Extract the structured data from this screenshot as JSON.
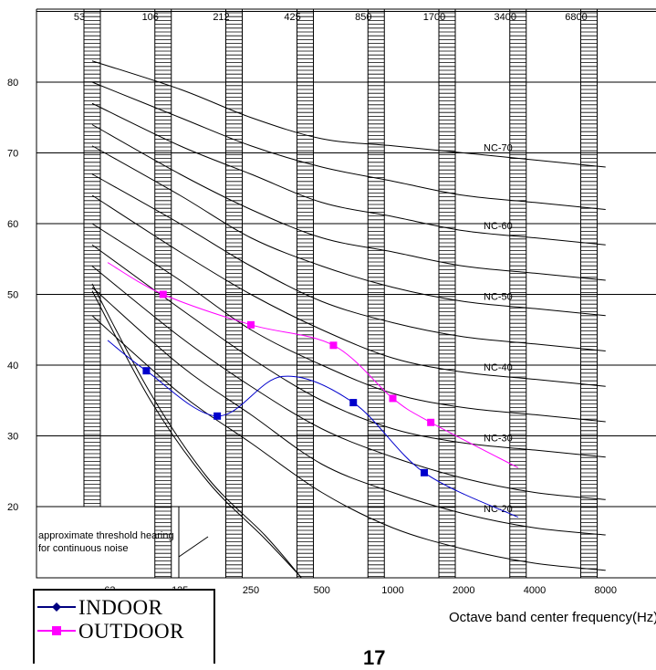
{
  "chart_data": {
    "type": "line",
    "title": "",
    "xlabel": "Octave band center frequency(Hz)",
    "ylabel": "",
    "ylim": [
      10,
      92
    ],
    "y_ticks": [
      20,
      30,
      40,
      50,
      60,
      70,
      80
    ],
    "x_center_labels": [
      "63",
      "125",
      "250",
      "500",
      "1000",
      "2000",
      "4000",
      "8000"
    ],
    "x_band_edge_labels": [
      "53",
      "106",
      "212",
      "425",
      "850",
      "1700",
      "3400",
      "6800"
    ],
    "grid": true,
    "legend_position": "bottom-left",
    "threshold_note": [
      "approximate threshold hearing",
      "for continuous noise"
    ],
    "nc_curve_labels": [
      "NC-70",
      "NC-60",
      "NC-50",
      "NC-40",
      "NC-30",
      "NC-20"
    ],
    "nc_curves": [
      {
        "nc": 15,
        "values": [
          47,
          36,
          29,
          22,
          17,
          14,
          12,
          11
        ]
      },
      {
        "nc": 20,
        "values": [
          51,
          40,
          33,
          26,
          22,
          19,
          17,
          16
        ]
      },
      {
        "nc": 25,
        "values": [
          54,
          44,
          37,
          31,
          27,
          24,
          22,
          21
        ]
      },
      {
        "nc": 30,
        "values": [
          57,
          48,
          41,
          35,
          31,
          29,
          28,
          27
        ]
      },
      {
        "nc": 35,
        "values": [
          60,
          52,
          45,
          40,
          36,
          34,
          33,
          32
        ]
      },
      {
        "nc": 40,
        "values": [
          64,
          56,
          50,
          45,
          41,
          39,
          38,
          37
        ]
      },
      {
        "nc": 45,
        "values": [
          67,
          60,
          54,
          49,
          46,
          44,
          43,
          42
        ]
      },
      {
        "nc": 50,
        "values": [
          71,
          64,
          58,
          54,
          51,
          49,
          48,
          47
        ]
      },
      {
        "nc": 55,
        "values": [
          74,
          67,
          62,
          58,
          56,
          54,
          53,
          52
        ]
      },
      {
        "nc": 60,
        "values": [
          77,
          71,
          67,
          63,
          61,
          59,
          58,
          57
        ]
      },
      {
        "nc": 65,
        "values": [
          80,
          75,
          71,
          68,
          66,
          64,
          63,
          62
        ]
      },
      {
        "nc": 70,
        "values": [
          83,
          79,
          75,
          72,
          71,
          70,
          69,
          68
        ]
      }
    ],
    "threshold_curves": [
      {
        "values": [
          41.5,
          26,
          14,
          6,
          0
        ]
      },
      {
        "values": [
          40.5,
          25,
          13.5,
          5.5,
          0
        ]
      }
    ],
    "series": [
      {
        "name": "INDOOR",
        "color": "#0000cc",
        "marker": "diamond",
        "x": [
          56,
          90,
          180,
          340,
          680,
          1360,
          3400
        ],
        "y": [
          43.5,
          39.2,
          32.8,
          38.4,
          34.7,
          24.8,
          18.5
        ],
        "marked_points": [
          1,
          2,
          4,
          5
        ]
      },
      {
        "name": "OUTDOOR",
        "color": "#ff00ff",
        "marker": "square",
        "x": [
          56,
          106,
          250,
          560,
          1000,
          1450,
          3400
        ],
        "y": [
          54.5,
          50,
          45.7,
          42.8,
          35.3,
          31.9,
          25.5
        ],
        "marked_points": [
          1,
          2,
          3,
          4,
          5
        ]
      }
    ]
  },
  "page": {
    "number": "17"
  }
}
